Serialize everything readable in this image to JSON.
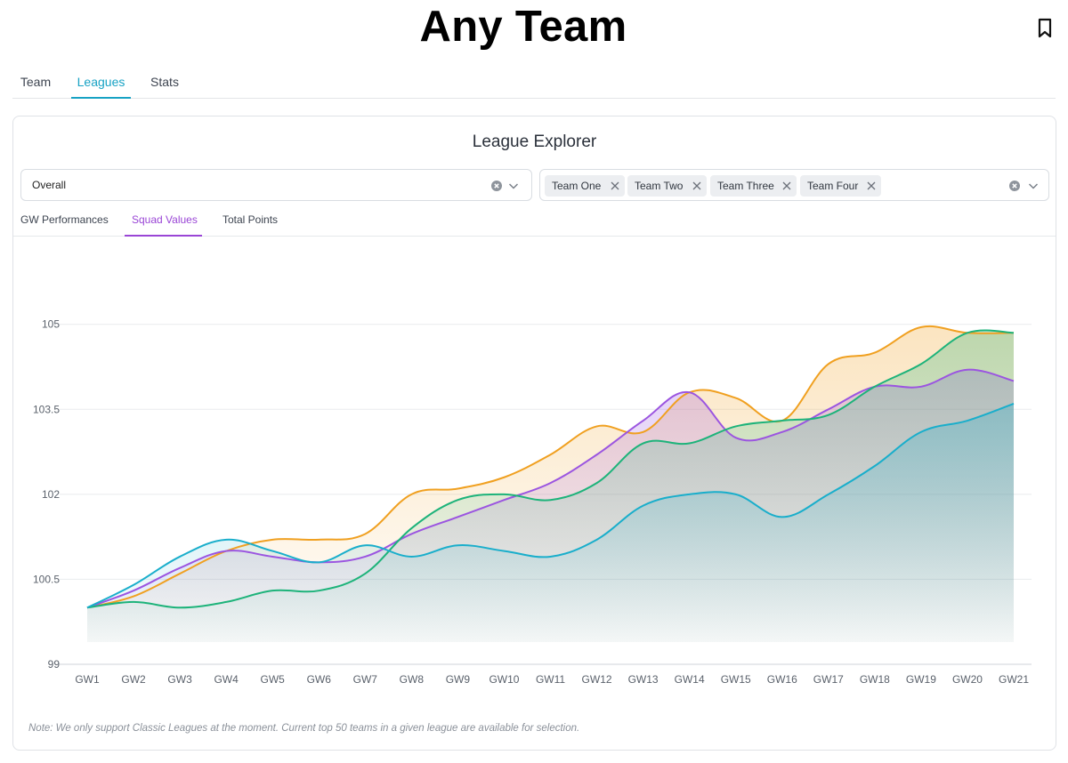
{
  "page": {
    "title": "Any Team"
  },
  "main_tabs": [
    {
      "label": "Team",
      "active": false
    },
    {
      "label": "Leagues",
      "active": true
    },
    {
      "label": "Stats",
      "active": false
    }
  ],
  "explorer": {
    "title": "League Explorer",
    "league_select": {
      "value": "Overall"
    },
    "team_chips": [
      "Team One",
      "Team Two",
      "Team Three",
      "Team Four"
    ],
    "sub_tabs": [
      {
        "label": "GW Performances",
        "active": false
      },
      {
        "label": "Squad Values",
        "active": true
      },
      {
        "label": "Total Points",
        "active": false
      }
    ],
    "note": "Note: We only support Classic Leagues at the moment. Current top 50 teams in a given league are available for selection."
  },
  "colors": {
    "accent": "#17a2c4",
    "subtab_accent": "#9a46d6",
    "orange": "#f0a020",
    "purple": "#9b55e0",
    "green": "#1db37a",
    "teal": "#19aecb"
  },
  "chart_data": {
    "type": "area",
    "x": [
      "GW1",
      "GW2",
      "GW3",
      "GW4",
      "GW5",
      "GW6",
      "GW7",
      "GW8",
      "GW9",
      "GW10",
      "GW11",
      "GW12",
      "GW13",
      "GW14",
      "GW15",
      "GW16",
      "GW17",
      "GW18",
      "GW19",
      "GW20",
      "GW21"
    ],
    "yticks": [
      "99",
      "100.5",
      "102",
      "103.5",
      "105"
    ],
    "ylim": [
      99,
      105.6
    ],
    "grid": true,
    "series": [
      {
        "color": "#f0a020",
        "values": [
          100.0,
          100.2,
          100.6,
          101.0,
          101.2,
          101.2,
          101.3,
          102.0,
          102.1,
          102.3,
          102.7,
          103.2,
          103.1,
          103.8,
          103.7,
          103.3,
          104.3,
          104.5,
          104.95,
          104.85,
          104.85
        ]
      },
      {
        "color": "#9b55e0",
        "values": [
          100.0,
          100.3,
          100.7,
          101.0,
          100.9,
          100.8,
          100.9,
          101.3,
          101.6,
          101.9,
          102.2,
          102.7,
          103.3,
          103.8,
          103.0,
          103.1,
          103.5,
          103.9,
          103.9,
          104.2,
          104.0
        ]
      },
      {
        "color": "#1db37a",
        "values": [
          100.0,
          100.1,
          100.0,
          100.1,
          100.3,
          100.3,
          100.6,
          101.4,
          101.9,
          102.0,
          101.9,
          102.2,
          102.9,
          102.9,
          103.2,
          103.3,
          103.4,
          103.9,
          104.3,
          104.85,
          104.85
        ]
      },
      {
        "color": "#19aecb",
        "values": [
          100.0,
          100.4,
          100.9,
          101.2,
          101.0,
          100.8,
          101.1,
          100.9,
          101.1,
          101.0,
          100.9,
          101.2,
          101.8,
          102.0,
          102.0,
          101.6,
          102.0,
          102.5,
          103.1,
          103.3,
          103.6
        ]
      }
    ]
  }
}
